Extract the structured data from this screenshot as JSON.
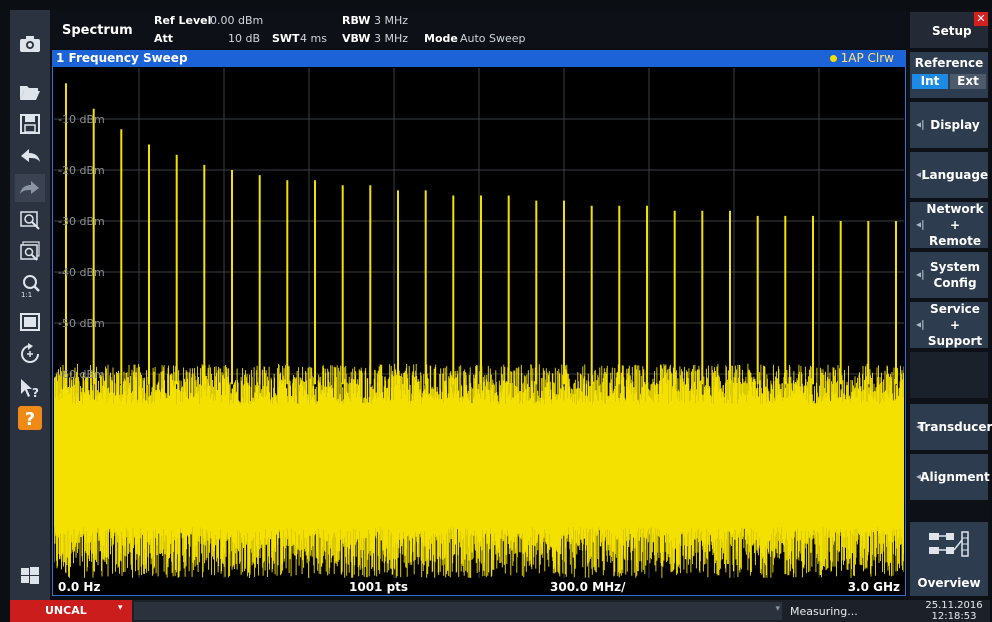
{
  "header": {
    "app_name": "Spectrum",
    "ref_level_label": "Ref Level",
    "ref_level_value": "0.00 dBm",
    "att_label": "Att",
    "att_value": "10 dB",
    "swt_label": "SWT",
    "swt_value": "4 ms",
    "rbw_label": "RBW",
    "rbw_value": "3 MHz",
    "vbw_label": "VBW",
    "vbw_value": "3 MHz",
    "mode_label": "Mode",
    "mode_value": "Auto Sweep"
  },
  "diagram": {
    "title": "1 Frequency Sweep",
    "trace_label": "1AP Clrw",
    "start_freq": "0.0 Hz",
    "points": "1001 pts",
    "span_per_div": "300.0 MHz/",
    "stop_freq": "3.0 GHz"
  },
  "toolbar": {
    "items": [
      "camera-icon",
      "folder-open-icon",
      "save-icon",
      "undo-icon",
      "redo-icon",
      "zoom-mode-icon",
      "multi-zoom-icon",
      "zoom-off-icon",
      "full-screen-icon",
      "refresh-icon",
      "help-pointer-icon",
      "help-icon",
      "windows-icon"
    ]
  },
  "softkeys": {
    "title": "Setup",
    "reference_label": "Reference",
    "ref_int": "Int",
    "ref_ext": "Ext",
    "display": "Display",
    "language": "Language",
    "network_l1": "Network +",
    "network_l2": "Remote",
    "system_l1": "System",
    "system_l2": "Config",
    "service_l1": "Service +",
    "service_l2": "Support",
    "transducer": "Transducer",
    "alignment": "Alignment",
    "overview": "Overview"
  },
  "status": {
    "uncal": "UNCAL",
    "measuring": "Measuring...",
    "date": "25.11.2016",
    "time": "12:18:53"
  },
  "colors": {
    "trace": "#f4e100",
    "title_bar": "#1d63d8",
    "uncal": "#cc1d1d",
    "softkey": "#2e3c4f",
    "ref_int_active": "#1d8ae6"
  },
  "chart_data": {
    "type": "line",
    "series": [
      {
        "values": []
      }
    ],
    "ylim": [
      -100,
      0
    ],
    "ytick_labels": [
      "-10 dBm",
      "-20 dBm",
      "-30 dBm",
      "-40 dBm",
      "-50 dBm",
      "-60 dBm"
    ],
    "x_start": "0.0 Hz",
    "x_stop": "3.0 GHz",
    "spur_peaks_dbm": [
      -3,
      -8,
      -12,
      -15,
      -17,
      -19,
      -20,
      -21,
      -22,
      -22,
      -23,
      -23,
      -24,
      -24,
      -25,
      -25,
      -25,
      -26,
      -26,
      -27,
      -27,
      -27,
      -28,
      -28,
      -28,
      -29,
      -29,
      -29,
      -30,
      -30,
      -30
    ],
    "noise_floor_dbm": -62,
    "grid": true
  }
}
